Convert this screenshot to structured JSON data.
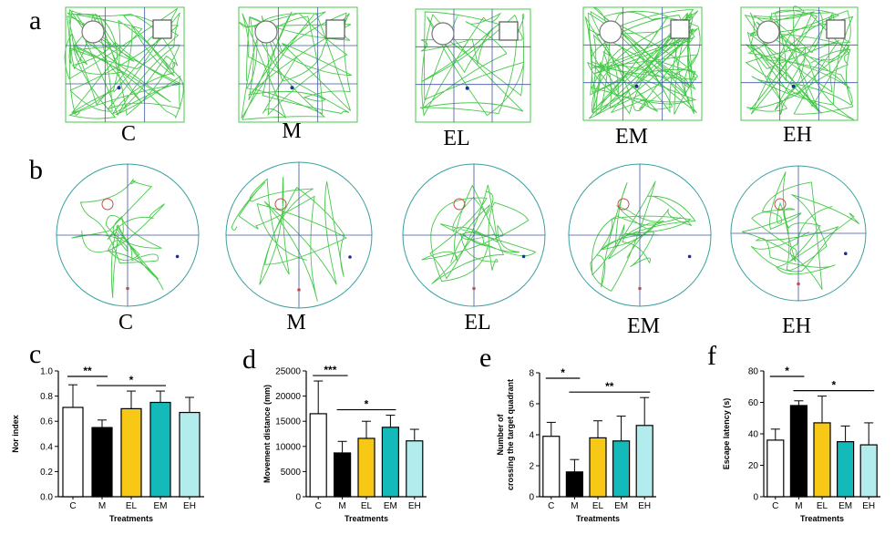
{
  "panel_letters": [
    "a",
    "b",
    "c",
    "d",
    "e",
    "f"
  ],
  "row_a": {
    "labels": [
      "C",
      "M",
      "EL",
      "EM",
      "EH"
    ]
  },
  "row_b": {
    "labels": [
      "C",
      "M",
      "EL",
      "EM",
      "EH"
    ]
  },
  "colors": {
    "C": "#ffffff",
    "M": "#000000",
    "EL": "#f7c815",
    "EM": "#14b9b9",
    "EH": "#b2ecec",
    "track": "#47c84a",
    "grid": "#4155a6"
  },
  "chart_data": [
    {
      "panel": "c",
      "type": "bar",
      "categories": [
        "C",
        "M",
        "EL",
        "EM",
        "EH"
      ],
      "values": [
        0.71,
        0.55,
        0.7,
        0.75,
        0.67
      ],
      "errors": [
        0.18,
        0.06,
        0.14,
        0.09,
        0.12
      ],
      "ylabel": "Nor index",
      "xlabel": "Treatments",
      "ylim": [
        0,
        1.0
      ],
      "yticks": [
        "0.0",
        "0.2",
        "0.4",
        "0.6",
        "0.8",
        "1.0"
      ],
      "significance": [
        {
          "from": 0,
          "to": 1,
          "label": "**"
        },
        {
          "from": 1,
          "to": 3,
          "label": "*"
        }
      ]
    },
    {
      "panel": "d",
      "type": "bar",
      "categories": [
        "C",
        "M",
        "EL",
        "EM",
        "EH"
      ],
      "values": [
        16500,
        8700,
        11600,
        13800,
        11100
      ],
      "errors": [
        6500,
        2300,
        3400,
        2400,
        2300
      ],
      "ylabel": "Movement distance (mm)",
      "xlabel": "Treatments",
      "ylim": [
        0,
        25000
      ],
      "yticks": [
        "0",
        "5000",
        "10000",
        "15000",
        "20000",
        "25000"
      ],
      "significance": [
        {
          "from": 0,
          "to": 1,
          "label": "***"
        },
        {
          "from": 1,
          "to": 3,
          "label": "*"
        }
      ]
    },
    {
      "panel": "e",
      "type": "bar",
      "categories": [
        "C",
        "M",
        "EL",
        "EM",
        "EH"
      ],
      "values": [
        3.9,
        1.6,
        3.8,
        3.6,
        4.6
      ],
      "errors": [
        0.9,
        0.8,
        1.1,
        1.6,
        1.8
      ],
      "ylabel": "Number of crossing the target quadrant",
      "xlabel": "Treatments",
      "ylim": [
        0,
        8
      ],
      "yticks": [
        "0",
        "2",
        "4",
        "6",
        "8"
      ],
      "significance": [
        {
          "from": 0,
          "to": 1,
          "label": "*"
        },
        {
          "from": 1,
          "to": 4,
          "label": "**"
        }
      ]
    },
    {
      "panel": "f",
      "type": "bar",
      "categories": [
        "C",
        "M",
        "EL",
        "EM",
        "EH"
      ],
      "values": [
        36,
        58,
        47,
        35,
        33
      ],
      "errors": [
        7,
        3,
        17,
        10,
        14
      ],
      "ylabel": "Escape latency (s)",
      "xlabel": "Treatments",
      "ylim": [
        0,
        80
      ],
      "yticks": [
        "0",
        "20",
        "40",
        "60",
        "80"
      ],
      "significance": [
        {
          "from": 0,
          "to": 1,
          "label": "*"
        },
        {
          "from": 1,
          "to": 4,
          "label": "*"
        }
      ]
    }
  ]
}
